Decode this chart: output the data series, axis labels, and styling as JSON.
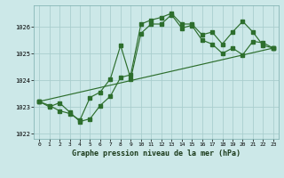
{
  "title": "Graphe pression niveau de la mer (hPa)",
  "bg_color": "#cce8e8",
  "grid_color": "#aacece",
  "line_color": "#2d6e2d",
  "xlim": [
    -0.5,
    23.5
  ],
  "ylim": [
    1021.8,
    1026.8
  ],
  "yticks": [
    1022,
    1023,
    1024,
    1025,
    1026
  ],
  "xticks": [
    0,
    1,
    2,
    3,
    4,
    5,
    6,
    7,
    8,
    9,
    10,
    11,
    12,
    13,
    14,
    15,
    16,
    17,
    18,
    19,
    20,
    21,
    22,
    23
  ],
  "line1_x": [
    0,
    1,
    2,
    3,
    4,
    5,
    6,
    7,
    8,
    9,
    10,
    11,
    12,
    13,
    14,
    15,
    16,
    17,
    18,
    19,
    20,
    21,
    22,
    23
  ],
  "line1_y": [
    1023.2,
    1023.0,
    1023.15,
    1022.8,
    1022.45,
    1022.55,
    1023.05,
    1023.4,
    1024.1,
    1024.2,
    1026.1,
    1026.25,
    1026.35,
    1026.5,
    1026.1,
    1026.1,
    1025.7,
    1025.8,
    1025.35,
    1025.8,
    1026.2,
    1025.8,
    1025.3,
    1025.2
  ],
  "line2_x": [
    0,
    1,
    2,
    3,
    4,
    5,
    6,
    7,
    8,
    9,
    10,
    11,
    12,
    13,
    14,
    15,
    16,
    17,
    18,
    19,
    20,
    21,
    22,
    23
  ],
  "line2_y": [
    1023.2,
    1023.05,
    1022.85,
    1022.75,
    1022.5,
    1023.35,
    1023.55,
    1024.05,
    1025.3,
    1024.05,
    1025.75,
    1026.1,
    1026.1,
    1026.45,
    1025.95,
    1026.05,
    1025.5,
    1025.35,
    1025.0,
    1025.2,
    1024.95,
    1025.45,
    1025.4,
    1025.2
  ],
  "line3_x": [
    0,
    23
  ],
  "line3_y": [
    1023.2,
    1025.2
  ]
}
